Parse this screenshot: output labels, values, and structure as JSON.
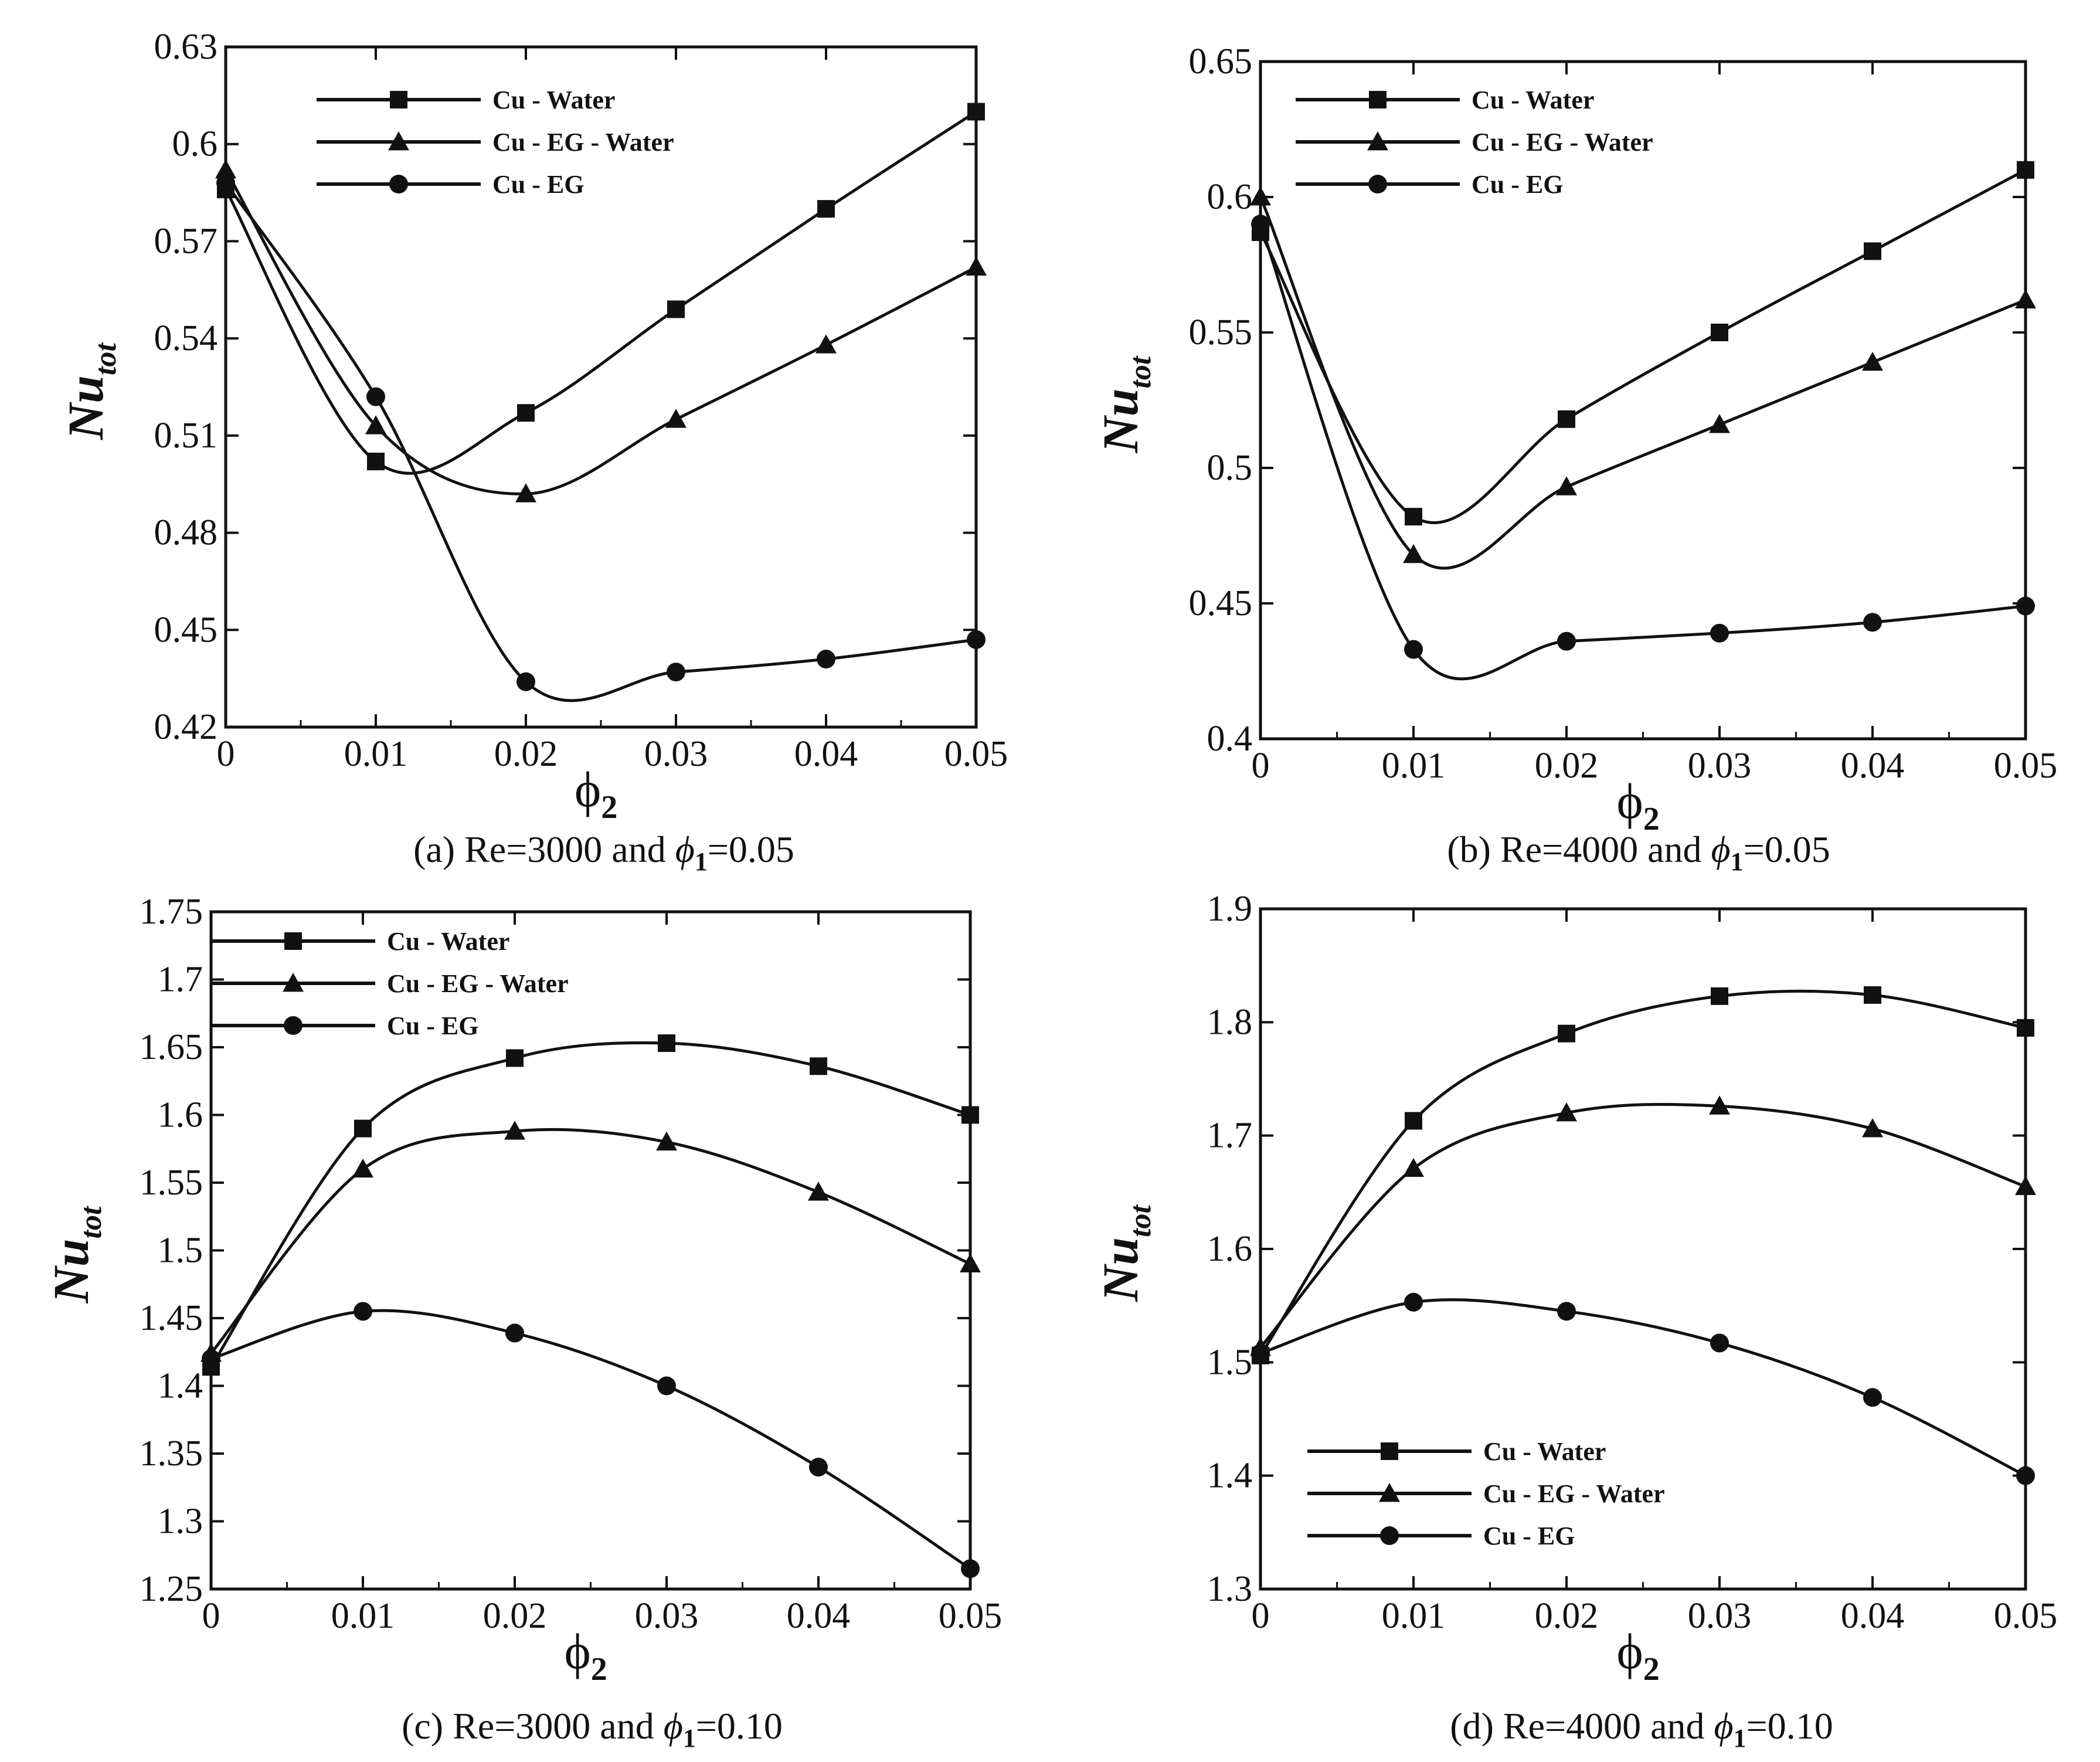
{
  "figure": {
    "description_none": ""
  },
  "chart_data": [
    {
      "type": "line",
      "panel": "a",
      "caption": {
        "prefix": "(a) Re=3000 and ",
        "phi": "ϕ",
        "sub": "1",
        "suffix": "=0.05"
      },
      "xlabel": "ϕ",
      "xlabel_sub": "2",
      "ylabel": "Nu",
      "ylabel_sub": "tot",
      "xlim": [
        0,
        0.05
      ],
      "ylim": [
        0.42,
        0.63
      ],
      "xticks": [
        "0",
        "0.01",
        "0.02",
        "0.03",
        "0.04",
        "0.05"
      ],
      "yticks": [
        "0.42",
        "0.45",
        "0.48",
        "0.51",
        "0.54",
        "0.57",
        "0.6",
        "0.63"
      ],
      "legend_position": "top-left",
      "x": [
        0,
        0.01,
        0.02,
        0.03,
        0.04,
        0.05
      ],
      "series": [
        {
          "name": "Cu - Water",
          "marker": "square",
          "values": [
            0.586,
            0.502,
            0.517,
            0.549,
            0.58,
            0.61
          ]
        },
        {
          "name": "Cu - EG - Water",
          "marker": "triangle",
          "values": [
            0.592,
            0.513,
            0.492,
            0.515,
            0.538,
            0.562
          ]
        },
        {
          "name": "Cu - EG",
          "marker": "circle",
          "values": [
            0.588,
            0.522,
            0.434,
            0.437,
            0.441,
            0.447
          ]
        }
      ]
    },
    {
      "type": "line",
      "panel": "b",
      "caption": {
        "prefix": "(b) Re=4000 and ",
        "phi": "ϕ",
        "sub": "1",
        "suffix": "=0.05"
      },
      "xlabel": "ϕ",
      "xlabel_sub": "2",
      "ylabel": "Nu",
      "ylabel_sub": "tot",
      "xlim": [
        0,
        0.05
      ],
      "ylim": [
        0.4,
        0.65
      ],
      "xticks": [
        "0",
        "0.01",
        "0.02",
        "0.03",
        "0.04",
        "0.05"
      ],
      "yticks": [
        "0.4",
        "0.45",
        "0.5",
        "0.55",
        "0.6",
        "0.65"
      ],
      "legend_position": "top-left",
      "x": [
        0,
        0.01,
        0.02,
        0.03,
        0.04,
        0.05
      ],
      "series": [
        {
          "name": "Cu - Water",
          "marker": "square",
          "values": [
            0.587,
            0.482,
            0.518,
            0.55,
            0.58,
            0.61
          ]
        },
        {
          "name": "Cu - EG - Water",
          "marker": "triangle",
          "values": [
            0.6,
            0.468,
            0.493,
            0.516,
            0.539,
            0.562
          ]
        },
        {
          "name": "Cu - EG",
          "marker": "circle",
          "values": [
            0.59,
            0.433,
            0.436,
            0.439,
            0.443,
            0.449
          ]
        }
      ]
    },
    {
      "type": "line",
      "panel": "c",
      "caption": {
        "prefix": "(c) Re=3000 and ",
        "phi": "ϕ",
        "sub": "1",
        "suffix": "=0.10"
      },
      "xlabel": "ϕ",
      "xlabel_sub": "2",
      "ylabel": "Nu",
      "ylabel_sub": "tot",
      "xlim": [
        0,
        0.05
      ],
      "ylim": [
        1.25,
        1.75
      ],
      "xticks": [
        "0",
        "0.01",
        "0.02",
        "0.03",
        "0.04",
        "0.05"
      ],
      "yticks": [
        "1.25",
        "1.3",
        "1.35",
        "1.4",
        "1.45",
        "1.5",
        "1.55",
        "1.6",
        "1.65",
        "1.7",
        "1.75"
      ],
      "legend_position": "top-left",
      "x": [
        0,
        0.01,
        0.02,
        0.03,
        0.04,
        0.05
      ],
      "series": [
        {
          "name": "Cu - Water",
          "marker": "square",
          "values": [
            1.414,
            1.59,
            1.642,
            1.653,
            1.636,
            1.6
          ]
        },
        {
          "name": "Cu - EG - Water",
          "marker": "triangle",
          "values": [
            1.424,
            1.56,
            1.588,
            1.58,
            1.543,
            1.49
          ]
        },
        {
          "name": "Cu - EG",
          "marker": "circle",
          "values": [
            1.42,
            1.455,
            1.439,
            1.4,
            1.34,
            1.265
          ]
        }
      ]
    },
    {
      "type": "line",
      "panel": "d",
      "caption": {
        "prefix": "(d) Re=4000 and ",
        "phi": "ϕ",
        "sub": "1",
        "suffix": "=0.10"
      },
      "xlabel": "ϕ",
      "xlabel_sub": "2",
      "ylabel": "Nu",
      "ylabel_sub": "tot",
      "xlim": [
        0,
        0.05
      ],
      "ylim": [
        1.3,
        1.9
      ],
      "xticks": [
        "0",
        "0.01",
        "0.02",
        "0.03",
        "0.04",
        "0.05"
      ],
      "yticks": [
        "1.3",
        "1.4",
        "1.5",
        "1.6",
        "1.7",
        "1.8",
        "1.9"
      ],
      "legend_position": "bottom-left",
      "x": [
        0,
        0.01,
        0.02,
        0.03,
        0.04,
        0.05
      ],
      "series": [
        {
          "name": "Cu - Water",
          "marker": "square",
          "values": [
            1.506,
            1.713,
            1.79,
            1.823,
            1.824,
            1.795
          ]
        },
        {
          "name": "Cu - EG - Water",
          "marker": "triangle",
          "values": [
            1.513,
            1.671,
            1.72,
            1.726,
            1.706,
            1.655
          ]
        },
        {
          "name": "Cu - EG",
          "marker": "circle",
          "values": [
            1.508,
            1.553,
            1.545,
            1.517,
            1.469,
            1.4
          ]
        }
      ]
    }
  ]
}
